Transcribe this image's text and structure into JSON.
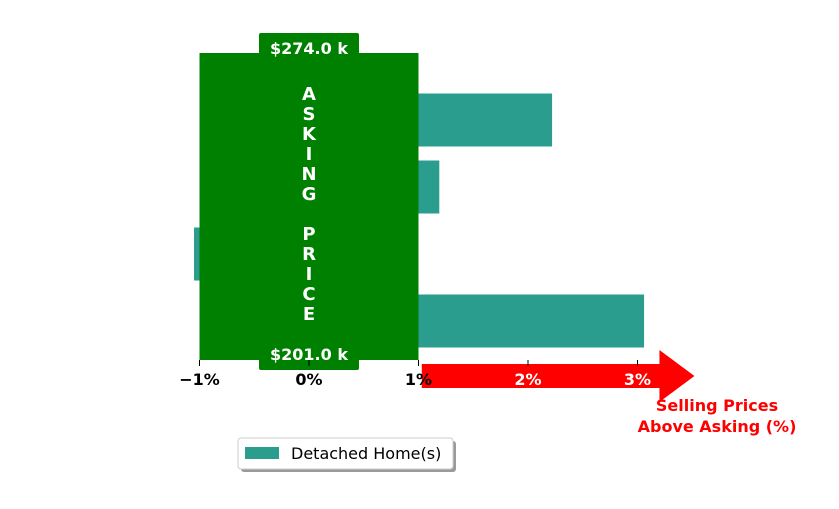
{
  "chart_data": {
    "type": "bar",
    "orientation": "horizontal",
    "title": "",
    "categories": [
      "",
      "",
      "",
      ""
    ],
    "series": [
      {
        "name": "Detached Home(s)",
        "color": "#2a9d8f",
        "values": [
          2.22,
          1.19,
          -1.05,
          3.06
        ]
      }
    ],
    "xlim": [
      -1.0,
      3.0
    ],
    "xticks": [
      {
        "value": -1,
        "label": "−1%"
      },
      {
        "value": 0,
        "label": "0%"
      },
      {
        "value": 1,
        "label": "1%"
      },
      {
        "value": 2,
        "label": "2%"
      },
      {
        "value": 3,
        "label": "3%"
      }
    ],
    "xlabel_line1": "Selling Prices",
    "xlabel_line2": "Above Asking (%)",
    "asking_band": {
      "from": -1,
      "to": 1,
      "color": "#008000",
      "label_letters": [
        "A",
        "S",
        "K",
        "I",
        "N",
        "G",
        "",
        "P",
        "R",
        "I",
        "C",
        "E"
      ],
      "top_label": "$274.0 k",
      "bottom_label": "$201.0 k"
    },
    "arrow_color": "#ff0000",
    "legend": {
      "position": "lower-center",
      "label": "Detached Home(s)"
    },
    "grid": false
  }
}
